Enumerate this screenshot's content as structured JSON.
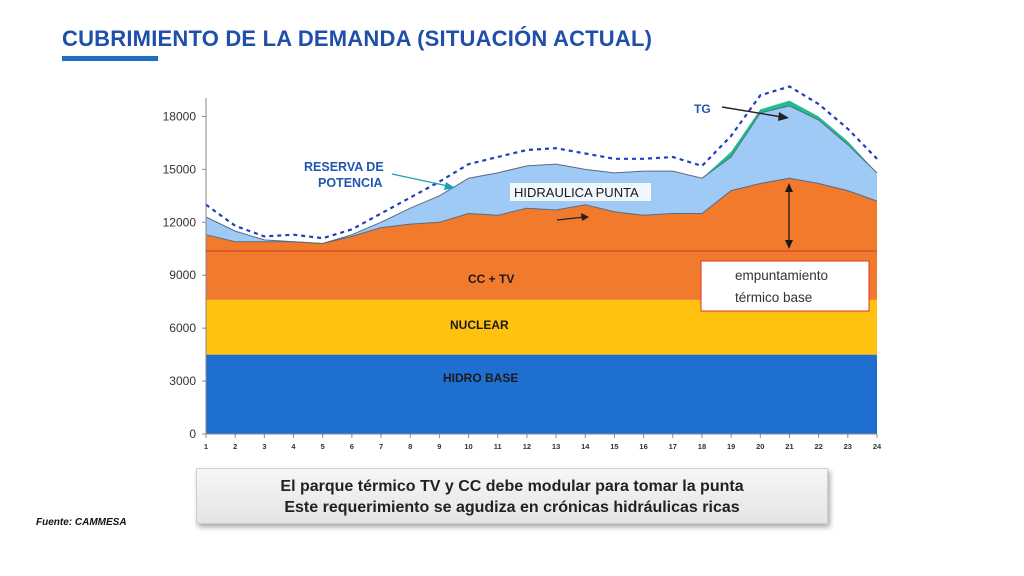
{
  "slide": {
    "title": "CUBRIMIENTO DE LA DEMANDA  (SITUACIÓN ACTUAL)",
    "callout_line1": "El parque térmico TV y CC debe modular para tomar la punta",
    "callout_line2": "Este requerimiento se agudiza en crónicas hidráulicas ricas",
    "source": "Fuente: CAMMESA"
  },
  "chart_data": {
    "type": "area",
    "title": "",
    "xlabel": "",
    "ylabel": "",
    "x": [
      1,
      2,
      3,
      4,
      5,
      6,
      7,
      8,
      9,
      10,
      11,
      12,
      13,
      14,
      15,
      16,
      17,
      18,
      19,
      20,
      21,
      22,
      23,
      24
    ],
    "ylim": [
      0,
      19500
    ],
    "yticks": [
      0,
      3000,
      6000,
      9000,
      12000,
      15000,
      18000
    ],
    "ytick_labels": [
      "0",
      "3000",
      "6000",
      "9000",
      "12000",
      "15000",
      "18000"
    ],
    "xtick_labels": [
      "1",
      "2",
      "3",
      "4",
      "5",
      "6",
      "7",
      "8",
      "9",
      "10",
      "11",
      "12",
      "13",
      "14",
      "15",
      "16",
      "17",
      "18",
      "19",
      "20",
      "21",
      "22",
      "23",
      "24"
    ],
    "grid": false,
    "colors": {
      "hidro_base": "#1f6fd1",
      "nuclear": "#ffc20e",
      "cc_tv": "#f27a2c",
      "hidraulica_punta": "#9fcaf5",
      "tg": "#1dbf8e",
      "reserva": "#1f3fbf",
      "callout_box_border": "#e03030",
      "annotation_text": "#1f56b3"
    },
    "series": [
      {
        "name": "HIDRO BASE",
        "stack_top": [
          4500,
          4500,
          4500,
          4500,
          4500,
          4500,
          4500,
          4500,
          4500,
          4500,
          4500,
          4500,
          4500,
          4500,
          4500,
          4500,
          4500,
          4500,
          4500,
          4500,
          4500,
          4500,
          4500,
          4500
        ]
      },
      {
        "name": "NUCLEAR",
        "stack_top": [
          7600,
          7600,
          7600,
          7600,
          7600,
          7600,
          7600,
          7600,
          7600,
          7600,
          7600,
          7600,
          7600,
          7600,
          7600,
          7600,
          7600,
          7600,
          7600,
          7600,
          7600,
          7600,
          7600,
          7600
        ]
      },
      {
        "name": "CC + TV",
        "stack_top": [
          11300,
          10900,
          10900,
          10900,
          10800,
          11200,
          11700,
          11900,
          12000,
          12500,
          12400,
          12800,
          12700,
          13000,
          12600,
          12400,
          12500,
          12500,
          13800,
          14200,
          14500,
          14200,
          13800,
          13200
        ]
      },
      {
        "name": "HIDRAULICA PUNTA",
        "stack_top": [
          12300,
          11500,
          11000,
          10900,
          10800,
          11300,
          12000,
          12800,
          13500,
          14500,
          14800,
          15200,
          15300,
          15000,
          14800,
          14900,
          14900,
          14500,
          15700,
          18200,
          18600,
          17800,
          16400,
          14800
        ]
      },
      {
        "name": "TG",
        "stack_top": [
          12300,
          11500,
          11000,
          10900,
          10800,
          11300,
          12000,
          12800,
          13500,
          14500,
          14800,
          15200,
          15300,
          15000,
          14800,
          14900,
          14900,
          14500,
          16000,
          18400,
          18900,
          18000,
          16600,
          14800
        ]
      },
      {
        "name": "RESERVA DE POTENCIA",
        "values": [
          13000,
          11800,
          11200,
          11300,
          11100,
          11600,
          12500,
          13400,
          14300,
          15300,
          15700,
          16100,
          16200,
          15900,
          15600,
          15600,
          15700,
          15200,
          16900,
          19200,
          19700,
          18700,
          17300,
          15600
        ]
      }
    ],
    "annotations": {
      "cc_tv": "CC + TV",
      "nuclear": "NUCLEAR",
      "hidro_base": "HIDRO BASE",
      "hidraulica_punta": "HIDRAULICA PUNTA",
      "tg": "TG",
      "reserva_line1": "RESERVA DE",
      "reserva_line2": "POTENCIA",
      "box_line1": "empuntamiento",
      "box_line2": "térmico base"
    }
  }
}
